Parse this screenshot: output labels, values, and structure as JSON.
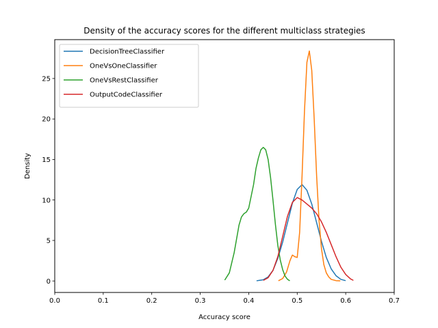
{
  "chart_data": {
    "type": "line",
    "title": "Density of the accuracy scores for the different multiclass strategies",
    "xlabel": "Accuracy score",
    "ylabel": "Density",
    "xlim": [
      0.0,
      0.7
    ],
    "ylim": [
      -1.42,
      29.8
    ],
    "xticks": [
      "0.0",
      "0.1",
      "0.2",
      "0.3",
      "0.4",
      "0.5",
      "0.6",
      "0.7"
    ],
    "yticks": [
      "0",
      "5",
      "10",
      "15",
      "20",
      "25"
    ],
    "grid": false,
    "legend_position": "upper-left",
    "series": [
      {
        "name": "DecisionTreeClassifier",
        "color": "#1f77b4",
        "x": [
          0.417,
          0.43,
          0.44,
          0.45,
          0.46,
          0.47,
          0.48,
          0.49,
          0.5,
          0.51,
          0.52,
          0.53,
          0.54,
          0.55,
          0.56,
          0.57,
          0.58,
          0.59,
          0.599
        ],
        "y": [
          0.03,
          0.15,
          0.5,
          1.3,
          2.8,
          4.8,
          7.2,
          9.6,
          11.3,
          11.9,
          11.2,
          9.5,
          7.2,
          4.9,
          2.9,
          1.5,
          0.65,
          0.2,
          0.05
        ]
      },
      {
        "name": "OneVsOneClassifier",
        "color": "#ff7f0e",
        "x": [
          0.462,
          0.47,
          0.478,
          0.485,
          0.49,
          0.495,
          0.5,
          0.505,
          0.51,
          0.515,
          0.52,
          0.525,
          0.53,
          0.535,
          0.54,
          0.545,
          0.55,
          0.555,
          0.56,
          0.565,
          0.57,
          0.58,
          0.588
        ],
        "y": [
          0.05,
          0.3,
          1.1,
          2.5,
          3.2,
          3.0,
          2.9,
          6.0,
          13.0,
          21.0,
          27.0,
          28.4,
          26.0,
          20.0,
          13.0,
          7.5,
          4.0,
          2.0,
          1.0,
          0.5,
          0.2,
          0.04,
          0.01
        ]
      },
      {
        "name": "OneVsRestClassifier",
        "color": "#2ca02c",
        "x": [
          0.351,
          0.36,
          0.37,
          0.38,
          0.385,
          0.39,
          0.395,
          0.4,
          0.41,
          0.415,
          0.42,
          0.425,
          0.43,
          0.435,
          0.44,
          0.445,
          0.45,
          0.455,
          0.46,
          0.465,
          0.47,
          0.475,
          0.48,
          0.484
        ],
        "y": [
          0.15,
          1.0,
          3.5,
          6.9,
          7.9,
          8.3,
          8.5,
          9.0,
          11.9,
          13.9,
          15.2,
          16.2,
          16.5,
          16.2,
          15.0,
          12.8,
          10.0,
          7.0,
          4.4,
          2.6,
          1.4,
          0.6,
          0.2,
          0.05
        ]
      },
      {
        "name": "OutputCodeClassifier",
        "color": "#d62728",
        "x": [
          0.431,
          0.44,
          0.45,
          0.46,
          0.47,
          0.48,
          0.49,
          0.5,
          0.51,
          0.52,
          0.53,
          0.54,
          0.55,
          0.56,
          0.57,
          0.58,
          0.59,
          0.6,
          0.61,
          0.615
        ],
        "y": [
          0.1,
          0.4,
          1.3,
          3.0,
          5.5,
          8.0,
          9.7,
          10.3,
          10.0,
          9.5,
          9.0,
          8.3,
          7.3,
          6.0,
          4.5,
          3.0,
          1.7,
          0.8,
          0.25,
          0.1
        ]
      }
    ]
  }
}
